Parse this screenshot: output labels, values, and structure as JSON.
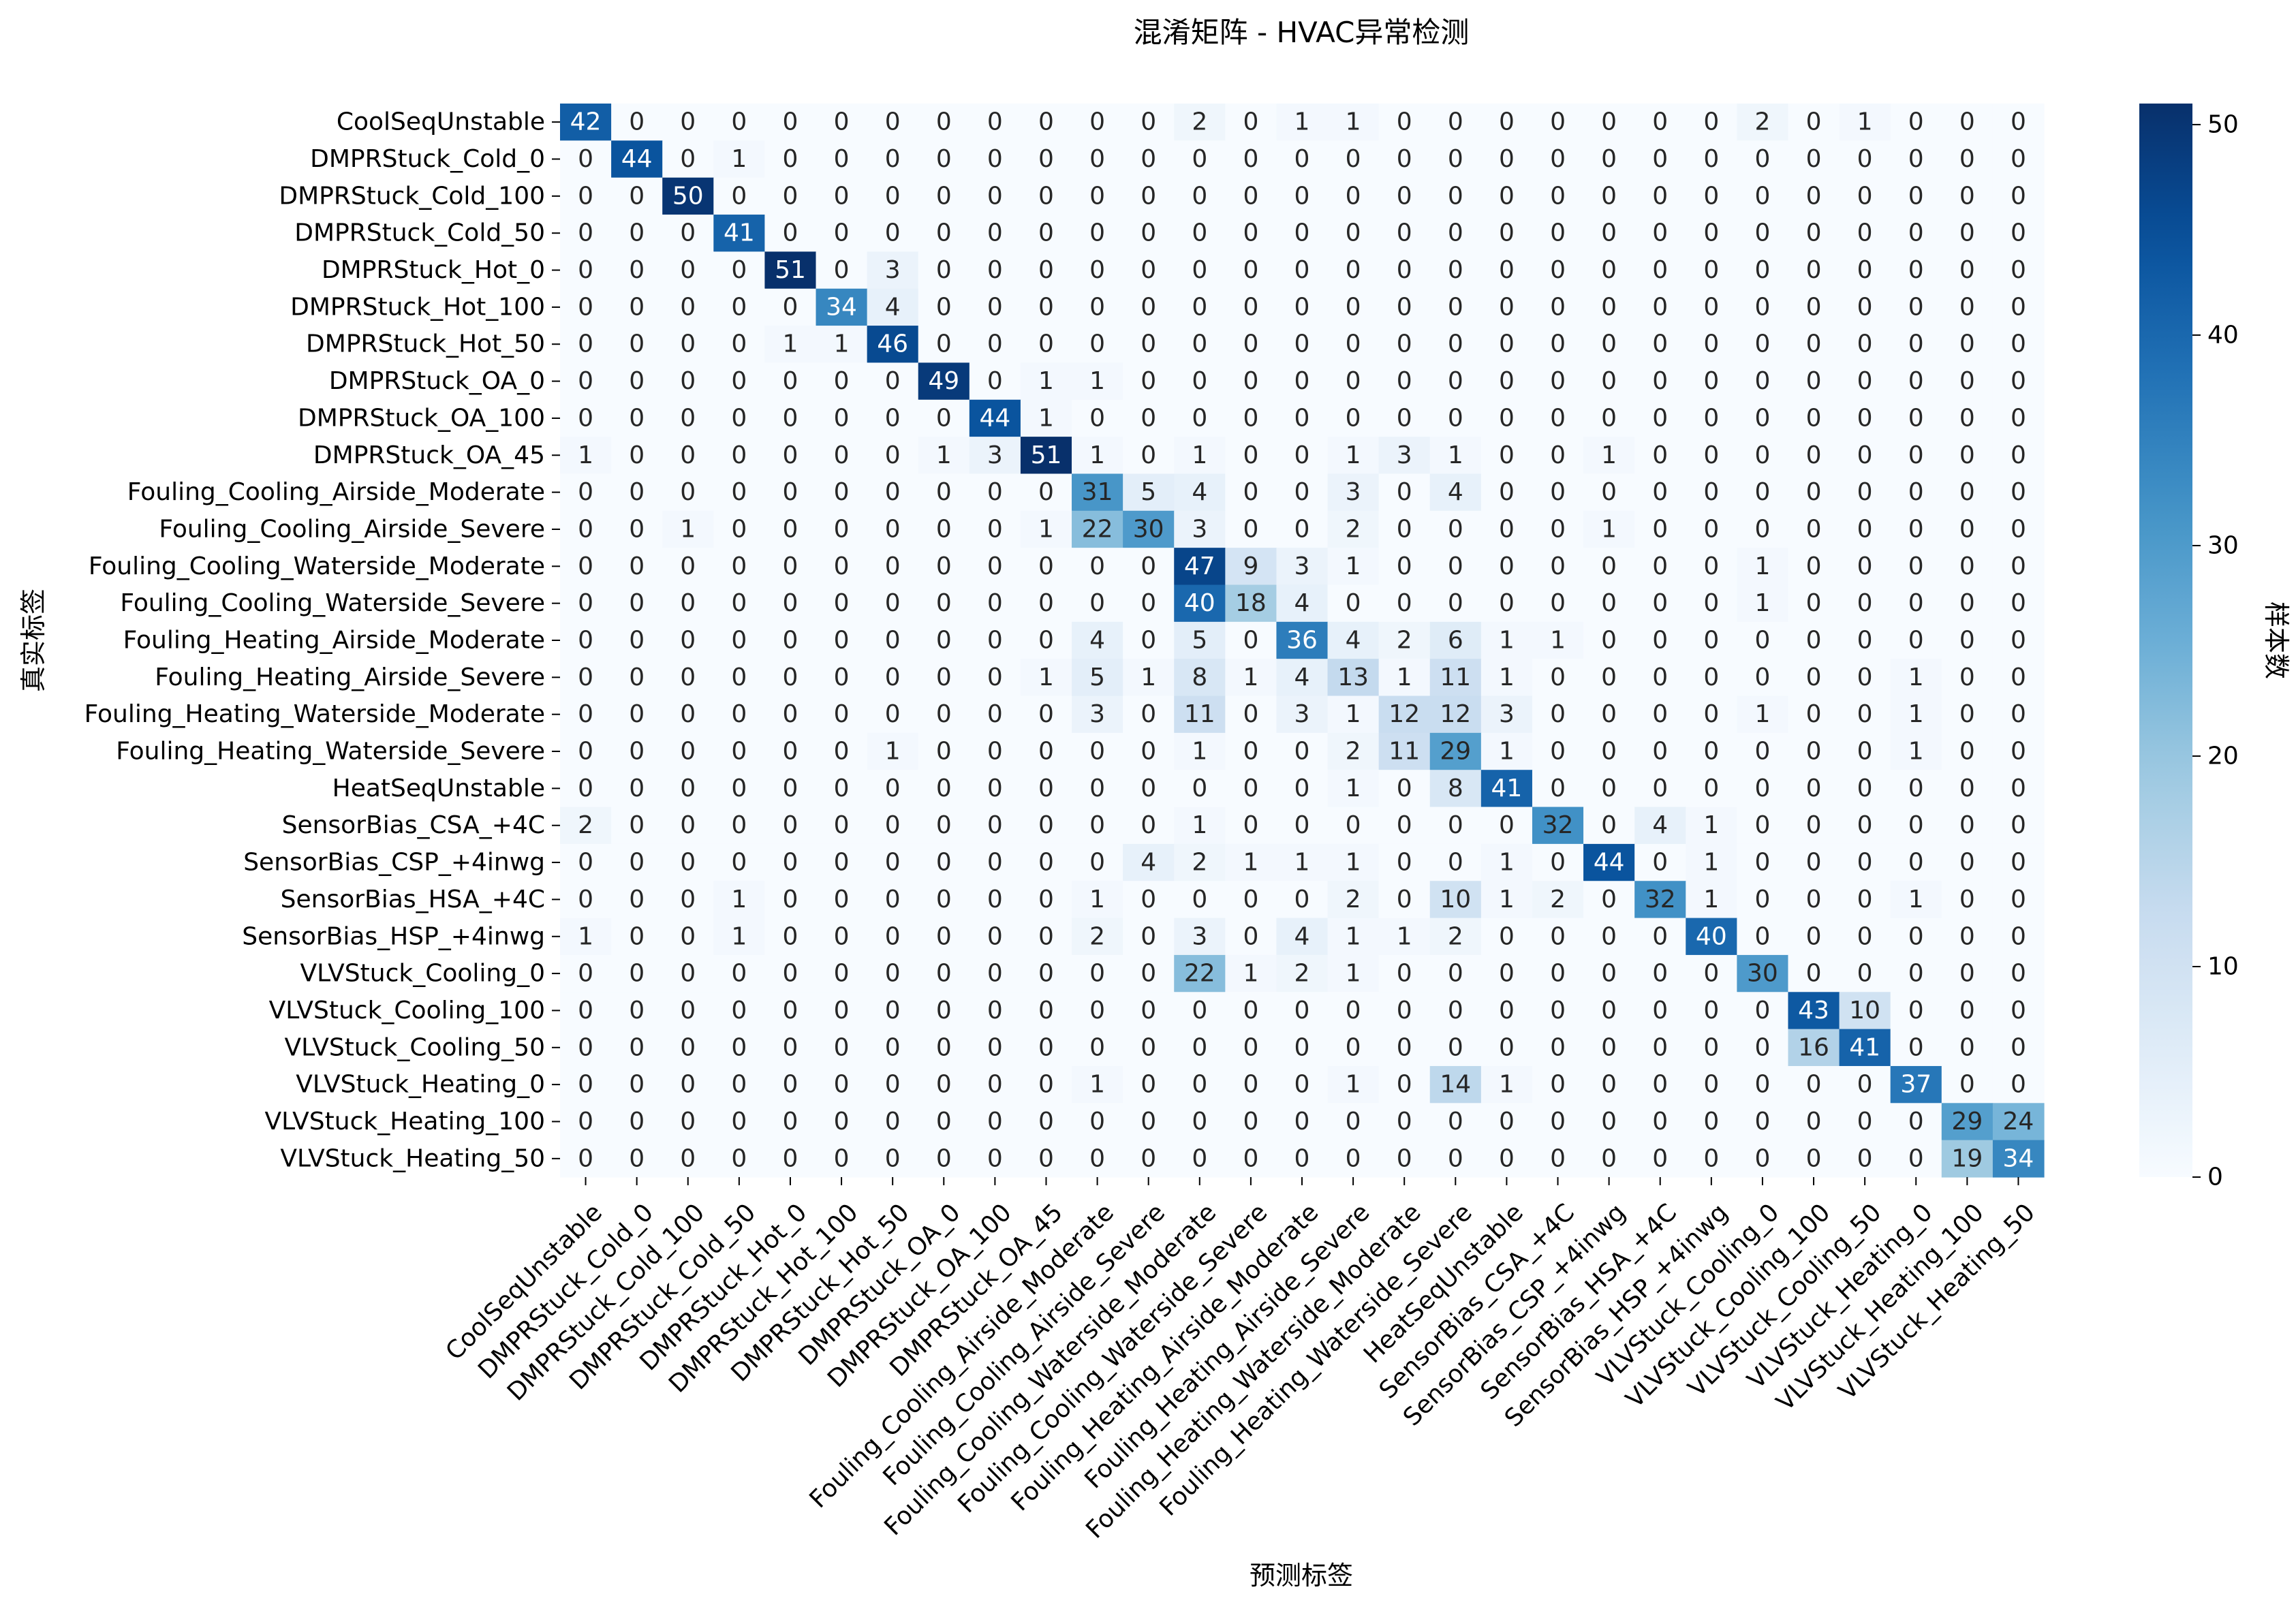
{
  "chart_data": {
    "type": "heatmap",
    "title": "混淆矩阵 - HVAC异常检测",
    "xlabel": "预测标签",
    "ylabel": "真实标签",
    "colorbar_label": "样本数",
    "colormap": "Blues",
    "color_low": "#f7fbff",
    "color_high": "#08306b",
    "vmin": 0,
    "vmax": 51,
    "colorbar_ticks": [
      0,
      10,
      20,
      30,
      40,
      50
    ],
    "labels": [
      "CoolSeqUnstable",
      "DMPRStuck_Cold_0",
      "DMPRStuck_Cold_100",
      "DMPRStuck_Cold_50",
      "DMPRStuck_Hot_0",
      "DMPRStuck_Hot_100",
      "DMPRStuck_Hot_50",
      "DMPRStuck_OA_0",
      "DMPRStuck_OA_100",
      "DMPRStuck_OA_45",
      "Fouling_Cooling_Airside_Moderate",
      "Fouling_Cooling_Airside_Severe",
      "Fouling_Cooling_Waterside_Moderate",
      "Fouling_Cooling_Waterside_Severe",
      "Fouling_Heating_Airside_Moderate",
      "Fouling_Heating_Airside_Severe",
      "Fouling_Heating_Waterside_Moderate",
      "Fouling_Heating_Waterside_Severe",
      "HeatSeqUnstable",
      "SensorBias_CSA_+4C",
      "SensorBias_CSP_+4inwg",
      "SensorBias_HSA_+4C",
      "SensorBias_HSP_+4inwg",
      "VLVStuck_Cooling_0",
      "VLVStuck_Cooling_100",
      "VLVStuck_Cooling_50",
      "VLVStuck_Heating_0",
      "VLVStuck_Heating_100",
      "VLVStuck_Heating_50"
    ],
    "matrix": [
      [
        42,
        0,
        0,
        0,
        0,
        0,
        0,
        0,
        0,
        0,
        0,
        0,
        2,
        0,
        1,
        1,
        0,
        0,
        0,
        0,
        0,
        0,
        0,
        2,
        0,
        1,
        0,
        0,
        0
      ],
      [
        0,
        44,
        0,
        1,
        0,
        0,
        0,
        0,
        0,
        0,
        0,
        0,
        0,
        0,
        0,
        0,
        0,
        0,
        0,
        0,
        0,
        0,
        0,
        0,
        0,
        0,
        0,
        0,
        0
      ],
      [
        0,
        0,
        50,
        0,
        0,
        0,
        0,
        0,
        0,
        0,
        0,
        0,
        0,
        0,
        0,
        0,
        0,
        0,
        0,
        0,
        0,
        0,
        0,
        0,
        0,
        0,
        0,
        0,
        0
      ],
      [
        0,
        0,
        0,
        41,
        0,
        0,
        0,
        0,
        0,
        0,
        0,
        0,
        0,
        0,
        0,
        0,
        0,
        0,
        0,
        0,
        0,
        0,
        0,
        0,
        0,
        0,
        0,
        0,
        0
      ],
      [
        0,
        0,
        0,
        0,
        51,
        0,
        3,
        0,
        0,
        0,
        0,
        0,
        0,
        0,
        0,
        0,
        0,
        0,
        0,
        0,
        0,
        0,
        0,
        0,
        0,
        0,
        0,
        0,
        0
      ],
      [
        0,
        0,
        0,
        0,
        0,
        34,
        4,
        0,
        0,
        0,
        0,
        0,
        0,
        0,
        0,
        0,
        0,
        0,
        0,
        0,
        0,
        0,
        0,
        0,
        0,
        0,
        0,
        0,
        0
      ],
      [
        0,
        0,
        0,
        0,
        1,
        1,
        46,
        0,
        0,
        0,
        0,
        0,
        0,
        0,
        0,
        0,
        0,
        0,
        0,
        0,
        0,
        0,
        0,
        0,
        0,
        0,
        0,
        0,
        0
      ],
      [
        0,
        0,
        0,
        0,
        0,
        0,
        0,
        49,
        0,
        1,
        1,
        0,
        0,
        0,
        0,
        0,
        0,
        0,
        0,
        0,
        0,
        0,
        0,
        0,
        0,
        0,
        0,
        0,
        0
      ],
      [
        0,
        0,
        0,
        0,
        0,
        0,
        0,
        0,
        44,
        1,
        0,
        0,
        0,
        0,
        0,
        0,
        0,
        0,
        0,
        0,
        0,
        0,
        0,
        0,
        0,
        0,
        0,
        0,
        0
      ],
      [
        1,
        0,
        0,
        0,
        0,
        0,
        0,
        1,
        3,
        51,
        1,
        0,
        1,
        0,
        0,
        1,
        3,
        1,
        0,
        0,
        1,
        0,
        0,
        0,
        0,
        0,
        0,
        0,
        0
      ],
      [
        0,
        0,
        0,
        0,
        0,
        0,
        0,
        0,
        0,
        0,
        31,
        5,
        4,
        0,
        0,
        3,
        0,
        4,
        0,
        0,
        0,
        0,
        0,
        0,
        0,
        0,
        0,
        0,
        0
      ],
      [
        0,
        0,
        1,
        0,
        0,
        0,
        0,
        0,
        0,
        1,
        22,
        30,
        3,
        0,
        0,
        2,
        0,
        0,
        0,
        0,
        1,
        0,
        0,
        0,
        0,
        0,
        0,
        0,
        0
      ],
      [
        0,
        0,
        0,
        0,
        0,
        0,
        0,
        0,
        0,
        0,
        0,
        0,
        47,
        9,
        3,
        1,
        0,
        0,
        0,
        0,
        0,
        0,
        0,
        1,
        0,
        0,
        0,
        0,
        0
      ],
      [
        0,
        0,
        0,
        0,
        0,
        0,
        0,
        0,
        0,
        0,
        0,
        0,
        40,
        18,
        4,
        0,
        0,
        0,
        0,
        0,
        0,
        0,
        0,
        1,
        0,
        0,
        0,
        0,
        0
      ],
      [
        0,
        0,
        0,
        0,
        0,
        0,
        0,
        0,
        0,
        0,
        4,
        0,
        5,
        0,
        36,
        4,
        2,
        6,
        1,
        1,
        0,
        0,
        0,
        0,
        0,
        0,
        0,
        0,
        0
      ],
      [
        0,
        0,
        0,
        0,
        0,
        0,
        0,
        0,
        0,
        1,
        5,
        1,
        8,
        1,
        4,
        13,
        1,
        11,
        1,
        0,
        0,
        0,
        0,
        0,
        0,
        0,
        1,
        0,
        0
      ],
      [
        0,
        0,
        0,
        0,
        0,
        0,
        0,
        0,
        0,
        0,
        3,
        0,
        11,
        0,
        3,
        1,
        12,
        12,
        3,
        0,
        0,
        0,
        0,
        1,
        0,
        0,
        1,
        0,
        0
      ],
      [
        0,
        0,
        0,
        0,
        0,
        0,
        1,
        0,
        0,
        0,
        0,
        0,
        1,
        0,
        0,
        2,
        11,
        29,
        1,
        0,
        0,
        0,
        0,
        0,
        0,
        0,
        1,
        0,
        0
      ],
      [
        0,
        0,
        0,
        0,
        0,
        0,
        0,
        0,
        0,
        0,
        0,
        0,
        0,
        0,
        0,
        1,
        0,
        8,
        41,
        0,
        0,
        0,
        0,
        0,
        0,
        0,
        0,
        0,
        0
      ],
      [
        2,
        0,
        0,
        0,
        0,
        0,
        0,
        0,
        0,
        0,
        0,
        0,
        1,
        0,
        0,
        0,
        0,
        0,
        0,
        32,
        0,
        4,
        1,
        0,
        0,
        0,
        0,
        0,
        0
      ],
      [
        0,
        0,
        0,
        0,
        0,
        0,
        0,
        0,
        0,
        0,
        0,
        4,
        2,
        1,
        1,
        1,
        0,
        0,
        1,
        0,
        44,
        0,
        1,
        0,
        0,
        0,
        0,
        0,
        0
      ],
      [
        0,
        0,
        0,
        1,
        0,
        0,
        0,
        0,
        0,
        0,
        1,
        0,
        0,
        0,
        0,
        2,
        0,
        10,
        1,
        2,
        0,
        32,
        1,
        0,
        0,
        0,
        1,
        0,
        0
      ],
      [
        1,
        0,
        0,
        1,
        0,
        0,
        0,
        0,
        0,
        0,
        2,
        0,
        3,
        0,
        4,
        1,
        1,
        2,
        0,
        0,
        0,
        0,
        40,
        0,
        0,
        0,
        0,
        0,
        0
      ],
      [
        0,
        0,
        0,
        0,
        0,
        0,
        0,
        0,
        0,
        0,
        0,
        0,
        22,
        1,
        2,
        1,
        0,
        0,
        0,
        0,
        0,
        0,
        0,
        30,
        0,
        0,
        0,
        0,
        0
      ],
      [
        0,
        0,
        0,
        0,
        0,
        0,
        0,
        0,
        0,
        0,
        0,
        0,
        0,
        0,
        0,
        0,
        0,
        0,
        0,
        0,
        0,
        0,
        0,
        0,
        43,
        10,
        0,
        0,
        0
      ],
      [
        0,
        0,
        0,
        0,
        0,
        0,
        0,
        0,
        0,
        0,
        0,
        0,
        0,
        0,
        0,
        0,
        0,
        0,
        0,
        0,
        0,
        0,
        0,
        0,
        16,
        41,
        0,
        0,
        0
      ],
      [
        0,
        0,
        0,
        0,
        0,
        0,
        0,
        0,
        0,
        0,
        1,
        0,
        0,
        0,
        0,
        1,
        0,
        14,
        1,
        0,
        0,
        0,
        0,
        0,
        0,
        0,
        37,
        0,
        0
      ],
      [
        0,
        0,
        0,
        0,
        0,
        0,
        0,
        0,
        0,
        0,
        0,
        0,
        0,
        0,
        0,
        0,
        0,
        0,
        0,
        0,
        0,
        0,
        0,
        0,
        0,
        0,
        0,
        29,
        24
      ],
      [
        0,
        0,
        0,
        0,
        0,
        0,
        0,
        0,
        0,
        0,
        0,
        0,
        0,
        0,
        0,
        0,
        0,
        0,
        0,
        0,
        0,
        0,
        0,
        0,
        0,
        0,
        0,
        19,
        34
      ]
    ]
  }
}
